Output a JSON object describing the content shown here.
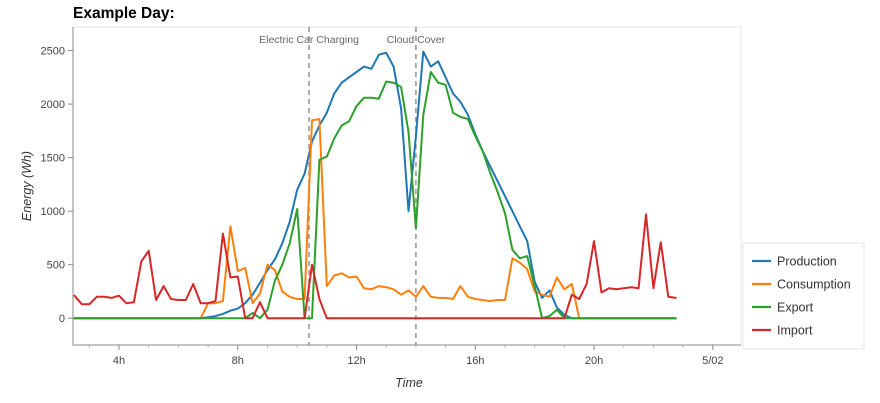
{
  "chart_data": {
    "type": "line",
    "title": "Example Day:",
    "xlabel": "Time",
    "ylabel": "Energy (Wh)",
    "x_ticks": [
      "4h",
      "8h",
      "12h",
      "16h",
      "20h",
      "5/02"
    ],
    "y_ticks": [
      "0",
      "500",
      "1000",
      "1500",
      "2000",
      "2500"
    ],
    "xlim": [
      2.45,
      24.95
    ],
    "ylim": [
      -250,
      2720
    ],
    "x_hours": [
      2.5,
      2.75,
      3.0,
      3.25,
      3.5,
      3.75,
      4.0,
      4.25,
      4.5,
      4.75,
      5.0,
      5.25,
      5.5,
      5.75,
      6.0,
      6.25,
      6.5,
      6.75,
      7.0,
      7.25,
      7.5,
      7.75,
      8.0,
      8.25,
      8.5,
      8.75,
      9.0,
      9.25,
      9.5,
      9.75,
      10.0,
      10.25,
      10.5,
      10.75,
      11.0,
      11.25,
      11.5,
      11.75,
      12.0,
      12.25,
      12.5,
      12.75,
      13.0,
      13.25,
      13.5,
      13.75,
      14.0,
      14.25,
      14.5,
      14.75,
      15.0,
      15.25,
      15.5,
      15.75,
      16.0,
      16.25,
      16.5,
      16.75,
      17.0,
      17.25,
      17.5,
      17.75,
      18.0,
      18.25,
      18.5,
      18.75,
      19.0,
      19.25,
      19.5,
      19.75,
      20.0,
      20.25,
      20.5,
      20.75,
      21.0,
      21.25,
      21.5,
      21.75,
      22.0,
      22.25,
      22.5,
      22.75
    ],
    "series": [
      {
        "name": "Production",
        "color": "#1f77b4",
        "values": [
          0,
          0,
          0,
          0,
          0,
          0,
          0,
          0,
          0,
          0,
          0,
          0,
          0,
          0,
          0,
          0,
          0,
          0,
          10,
          20,
          40,
          70,
          90,
          140,
          220,
          330,
          450,
          550,
          700,
          900,
          1200,
          1350,
          1650,
          1800,
          1920,
          2100,
          2200,
          2250,
          2300,
          2350,
          2330,
          2460,
          2480,
          2350,
          1960,
          1000,
          1700,
          2490,
          2350,
          2400,
          2250,
          2100,
          2020,
          1900,
          1720,
          1560,
          1420,
          1280,
          1140,
          1000,
          860,
          720,
          340,
          190,
          260,
          100,
          30,
          0,
          0,
          0,
          0,
          0,
          0,
          0,
          0,
          0,
          0,
          0,
          0,
          0,
          0,
          0
        ]
      },
      {
        "name": "Consumption",
        "color": "#ff7f0e",
        "values": [
          0,
          0,
          0,
          0,
          0,
          0,
          0,
          0,
          0,
          0,
          0,
          0,
          0,
          0,
          0,
          0,
          0,
          0,
          140,
          140,
          160,
          860,
          440,
          470,
          140,
          230,
          500,
          450,
          250,
          200,
          180,
          180,
          1850,
          1860,
          300,
          400,
          420,
          380,
          390,
          280,
          270,
          300,
          290,
          270,
          220,
          260,
          200,
          300,
          200,
          190,
          190,
          180,
          300,
          200,
          180,
          170,
          160,
          170,
          170,
          560,
          520,
          460,
          250,
          220,
          200,
          380,
          270,
          320,
          0,
          0,
          0,
          0,
          0,
          0,
          0,
          0,
          0,
          0,
          0,
          0,
          0,
          0
        ]
      },
      {
        "name": "Export",
        "color": "#2ca02c",
        "values": [
          0,
          0,
          0,
          0,
          0,
          0,
          0,
          0,
          0,
          0,
          0,
          0,
          0,
          0,
          0,
          0,
          0,
          0,
          0,
          0,
          0,
          0,
          0,
          0,
          50,
          0,
          80,
          350,
          500,
          700,
          1020,
          0,
          0,
          1480,
          1510,
          1680,
          1800,
          1840,
          1980,
          2060,
          2060,
          2050,
          2210,
          2200,
          2160,
          1740,
          840,
          1900,
          2300,
          2200,
          2180,
          1920,
          1880,
          1860,
          1700,
          1560,
          1360,
          1180,
          980,
          640,
          560,
          580,
          300,
          0,
          20,
          80,
          0,
          0,
          0,
          0,
          0,
          0,
          0,
          0,
          0,
          0,
          0,
          0,
          0,
          0,
          0,
          0
        ]
      },
      {
        "name": "Import",
        "color": "#d62728",
        "values": [
          210,
          130,
          130,
          200,
          200,
          190,
          210,
          140,
          150,
          530,
          630,
          170,
          300,
          180,
          170,
          170,
          320,
          140,
          140,
          160,
          790,
          380,
          390,
          0,
          0,
          150,
          0,
          0,
          0,
          0,
          0,
          0,
          500,
          180,
          0,
          0,
          0,
          0,
          0,
          0,
          0,
          0,
          0,
          0,
          0,
          0,
          0,
          0,
          0,
          0,
          0,
          0,
          0,
          0,
          0,
          0,
          0,
          0,
          0,
          0,
          0,
          0,
          0,
          0,
          0,
          0,
          0,
          220,
          180,
          320,
          720,
          240,
          280,
          270,
          280,
          290,
          280,
          970,
          280,
          710,
          200,
          190
        ]
      }
    ],
    "annotations": [
      {
        "label": "Electric Car Charging",
        "x_hour": 10.4
      },
      {
        "label": "Cloud Cover",
        "x_hour": 14.0
      }
    ],
    "legend": {
      "position": "right",
      "entries": [
        "Production",
        "Consumption",
        "Export",
        "Import"
      ]
    },
    "grid": false
  }
}
